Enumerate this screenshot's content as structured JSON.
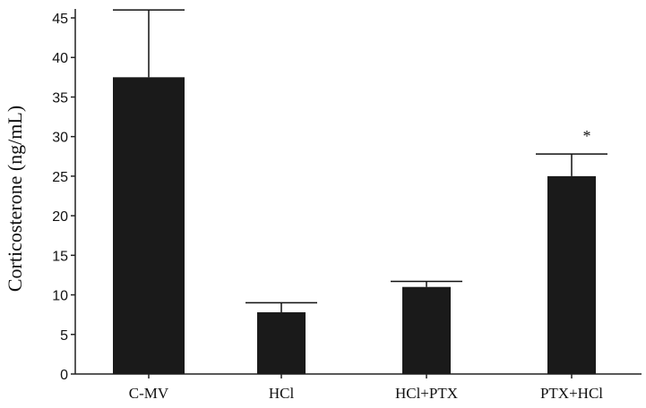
{
  "chart_data": {
    "type": "bar",
    "y_label": "Corticosterone (ng/mL)",
    "categories": [
      "C-MV",
      "HCl",
      "HCl+PTX",
      "PTX+HCl"
    ],
    "values": [
      37.5,
      7.8,
      11,
      25
    ],
    "errors": [
      8.5,
      1.2,
      0.7,
      2.8
    ],
    "color": "#1a1a1a",
    "annotation": "*",
    "ylim": [
      0,
      45
    ],
    "yticks": [
      0,
      5,
      10,
      15,
      20,
      25,
      30,
      35,
      40,
      45
    ],
    "grid": false
  }
}
